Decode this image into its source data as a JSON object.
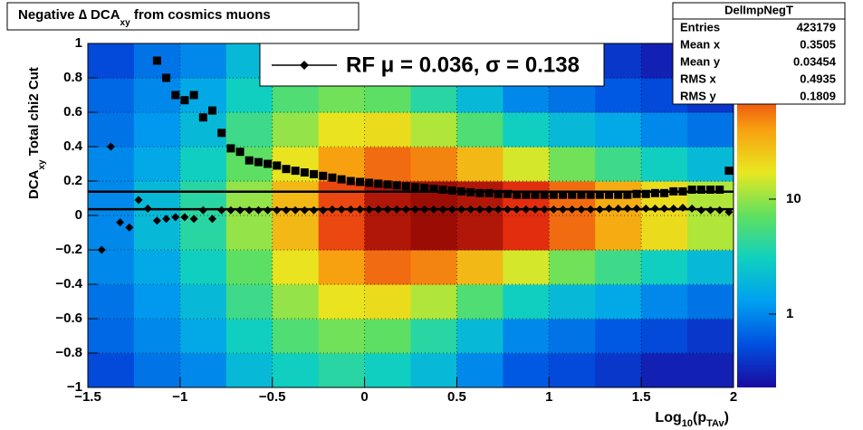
{
  "chart_data": {
    "type": "heatmap",
    "title_parts": [
      "Negative ∆ DCA",
      "xy",
      " from cosmics muons"
    ],
    "xlabel_parts": [
      "Log",
      "10",
      "(p",
      "TAv",
      ")"
    ],
    "ylabel_parts": [
      "DCA",
      "xy",
      "  Total chi2 Cut"
    ],
    "xlim": [
      -1.5,
      2
    ],
    "ylim": [
      -1,
      1
    ],
    "xticks": [
      {
        "value": -1.5,
        "label": "−1.5"
      },
      {
        "value": -1,
        "label": "−1"
      },
      {
        "value": -0.5,
        "label": "−0.5"
      },
      0,
      0.5,
      1,
      1.5,
      2
    ],
    "yticks": [
      {
        "value": -1,
        "label": "−1"
      },
      {
        "value": -0.8,
        "label": "−0.8"
      },
      {
        "value": -0.6,
        "label": "−0.6"
      },
      {
        "value": -0.4,
        "label": "−0.4"
      },
      {
        "value": -0.2,
        "label": "−0.2"
      },
      0,
      0.2,
      0.4,
      0.6,
      0.8,
      1
    ],
    "grid": true,
    "zlog": true,
    "zlim": [
      0.23,
      226
    ],
    "zticks": [
      1,
      10
    ],
    "palette": [
      "#1a0aa0",
      "#0050e0",
      "#00a0f0",
      "#10d0c0",
      "#60e060",
      "#e8e820",
      "#f8a010",
      "#e83010",
      "#800000"
    ],
    "heat_xbins": [
      -1.5,
      -1.25,
      -1,
      -0.75,
      -0.5,
      -0.25,
      0,
      0.25,
      0.5,
      0.75,
      1,
      1.25,
      1.5,
      1.75,
      2
    ],
    "heat_ybins": [
      -1,
      -0.8,
      -0.6,
      -0.4,
      -0.2,
      0,
      0.2,
      0.4,
      0.6,
      0.8,
      1
    ],
    "heat_z": [
      [
        0.5,
        0.8,
        1,
        2,
        3,
        4,
        3,
        2,
        1,
        0.6,
        0.5,
        0.4,
        0.3,
        0.3
      ],
      [
        0.7,
        1,
        1.5,
        3,
        6,
        8,
        7,
        4,
        2,
        1,
        0.8,
        0.6,
        0.5,
        0.4
      ],
      [
        0.8,
        1.2,
        2,
        5,
        10,
        18,
        20,
        12,
        6,
        3,
        2,
        1.5,
        1,
        0.8
      ],
      [
        1,
        1.5,
        3,
        7,
        18,
        40,
        60,
        50,
        30,
        15,
        8,
        5,
        3,
        2
      ],
      [
        1,
        2,
        4,
        10,
        30,
        80,
        150,
        180,
        150,
        100,
        60,
        35,
        20,
        12
      ],
      [
        1,
        2,
        4,
        10,
        30,
        80,
        150,
        180,
        150,
        100,
        60,
        35,
        20,
        12
      ],
      [
        1,
        1.5,
        3,
        7,
        18,
        40,
        60,
        50,
        30,
        15,
        8,
        5,
        3,
        2
      ],
      [
        0.8,
        1.2,
        2,
        5,
        10,
        18,
        20,
        12,
        6,
        3,
        2,
        1.5,
        1,
        0.8
      ],
      [
        0.7,
        1,
        1.5,
        3,
        6,
        8,
        7,
        4,
        2,
        1,
        0.8,
        0.6,
        0.5,
        0.4
      ],
      [
        0.5,
        0.8,
        1,
        2,
        3,
        4,
        3,
        2,
        1,
        0.6,
        0.5,
        0.4,
        0.3,
        0.3
      ]
    ],
    "points_x0": -1.425,
    "points_dx": 0.05,
    "series": [
      {
        "marker": "diamond",
        "color": "#000000",
        "values": [
          -0.2,
          0.4,
          -0.04,
          -0.07,
          0.09,
          0.04,
          -0.03,
          -0.02,
          -0.01,
          -0.01,
          -0.02,
          0.03,
          -0.02,
          0.03,
          0.03,
          0.03,
          0.03,
          0.03,
          0.03,
          0.03,
          0.03,
          0.03,
          0.03,
          0.03,
          0.03,
          0.035,
          0.035,
          0.035,
          0.035,
          0.035,
          0.035,
          0.035,
          0.035,
          0.035,
          0.035,
          0.035,
          0.035,
          0.035,
          0.035,
          0.035,
          0.035,
          0.035,
          0.035,
          0.035,
          0.035,
          0.035,
          0.035,
          0.035,
          0.035,
          0.035,
          0.035,
          0.035,
          0.035,
          0.035,
          0.035,
          0.04,
          0.04,
          0.04,
          0.04,
          0.04,
          0.04,
          0.04,
          0.04,
          0.045,
          0.04,
          0.03,
          0.03,
          0.03,
          0.02
        ]
      },
      {
        "marker": "square",
        "color": "#000000",
        "values": [
          null,
          null,
          null,
          null,
          null,
          null,
          0.9,
          0.8,
          0.7,
          0.67,
          0.7,
          0.57,
          0.61,
          0.48,
          0.39,
          0.37,
          0.32,
          0.31,
          0.3,
          0.29,
          0.27,
          0.26,
          0.25,
          0.24,
          0.23,
          0.22,
          0.21,
          0.2,
          0.195,
          0.19,
          0.185,
          0.18,
          0.175,
          0.17,
          0.165,
          0.16,
          0.155,
          0.15,
          0.145,
          0.14,
          0.135,
          0.13,
          0.13,
          0.125,
          0.125,
          0.12,
          0.12,
          0.12,
          0.12,
          0.12,
          0.12,
          0.12,
          0.12,
          0.12,
          0.12,
          0.12,
          0.12,
          0.12,
          0.125,
          0.125,
          0.13,
          0.13,
          0.14,
          0.14,
          0.15,
          0.15,
          0.15,
          0.15,
          0.26
        ]
      }
    ],
    "fit_lines": [
      0.036,
      0.138
    ],
    "legend_text": "RF μ =  0.036, σ =   0.138",
    "stats": {
      "title": "DelImpNegT",
      "rows": [
        [
          "Entries",
          "423179"
        ],
        [
          "Mean x",
          "0.3505"
        ],
        [
          "Mean y",
          "0.03454"
        ],
        [
          "RMS x",
          "0.4935"
        ],
        [
          "RMS y",
          "0.1809"
        ]
      ]
    }
  }
}
